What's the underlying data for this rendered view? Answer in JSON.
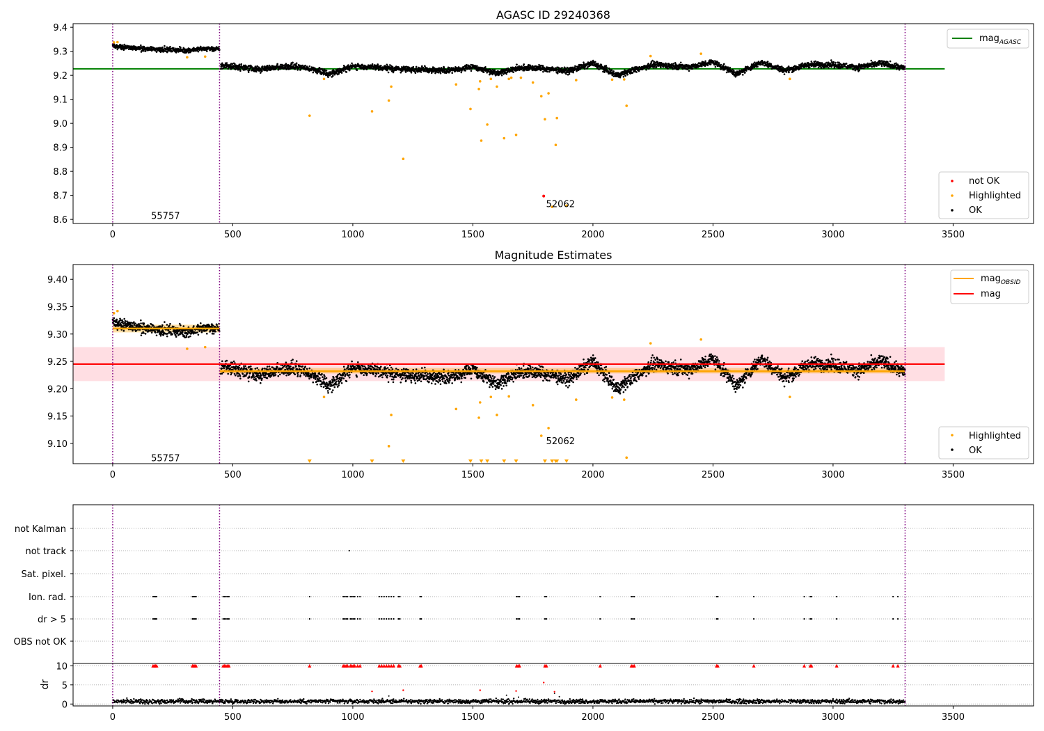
{
  "chart_data": [
    {
      "id": "panel1",
      "type": "scatter",
      "title": "AGASC ID 29240368",
      "xlim": [
        -165,
        3835
      ],
      "ylim": [
        8.583,
        9.415
      ],
      "xticks": [
        "0",
        "500",
        "1000",
        "1500",
        "2000",
        "2500",
        "3000",
        "3500"
      ],
      "xtick_values": [
        0,
        500,
        1000,
        1500,
        2000,
        2500,
        3000,
        3500
      ],
      "yticks": [
        "8.6",
        "8.7",
        "8.8",
        "8.9",
        "9.0",
        "9.1",
        "9.2",
        "9.3",
        "9.4"
      ],
      "ytick_values": [
        8.6,
        8.7,
        8.8,
        8.9,
        9.0,
        9.1,
        9.2,
        9.3,
        9.4
      ],
      "vlines": [
        0,
        445,
        3300
      ],
      "hline": {
        "y": 9.227,
        "x": [
          -165,
          3465
        ],
        "color": "#008000",
        "label": "mag",
        "label_sub": "AGASC"
      },
      "legend_top": {
        "entries": [
          {
            "label": "mag",
            "sub": "AGASC",
            "color": "#008000"
          }
        ]
      },
      "legend_bottom": {
        "entries": [
          {
            "label": "not OK",
            "color": "#ff0000"
          },
          {
            "label": "Highlighted",
            "color": "#ffa500"
          },
          {
            "label": "OK",
            "color": "#000000"
          }
        ]
      },
      "annotations": [
        {
          "text": "55757",
          "x": 160,
          "y": 8.617
        },
        {
          "text": "52062",
          "x": 1805,
          "y": 8.666
        }
      ],
      "series": [
        {
          "name": "OK",
          "color": "#000000",
          "segments": [
            {
              "x0": 0,
              "x1": 445,
              "levels": [
                [
                  0,
                  9.323
                ],
                [
                  100,
                  9.312
                ],
                [
                  200,
                  9.308
                ],
                [
                  300,
                  9.304
                ],
                [
                  400,
                  9.312
                ],
                [
                  445,
                  9.308
                ]
              ],
              "noise": 0.009
            },
            {
              "x0": 450,
              "x1": 3300,
              "levels": [
                [
                  450,
                  9.243
                ],
                [
                  600,
                  9.225
                ],
                [
                  750,
                  9.238
                ],
                [
                  850,
                  9.222
                ],
                [
                  900,
                  9.205
                ],
                [
                  1000,
                  9.238
                ],
                [
                  1200,
                  9.226
                ],
                [
                  1400,
                  9.22
                ],
                [
                  1500,
                  9.235
                ],
                [
                  1600,
                  9.21
                ],
                [
                  1700,
                  9.232
                ],
                [
                  1800,
                  9.228
                ],
                [
                  1900,
                  9.218
                ],
                [
                  2000,
                  9.25
                ],
                [
                  2100,
                  9.2
                ],
                [
                  2250,
                  9.245
                ],
                [
                  2400,
                  9.235
                ],
                [
                  2500,
                  9.255
                ],
                [
                  2600,
                  9.205
                ],
                [
                  2700,
                  9.255
                ],
                [
                  2800,
                  9.22
                ],
                [
                  2900,
                  9.245
                ],
                [
                  3000,
                  9.245
                ],
                [
                  3100,
                  9.233
                ],
                [
                  3200,
                  9.25
                ],
                [
                  3300,
                  9.23
                ]
              ],
              "noise": 0.011
            }
          ]
        },
        {
          "name": "Highlighted",
          "color": "#ffa500",
          "points": [
            [
              5,
              9.337
            ],
            [
              20,
              9.338
            ],
            [
              310,
              9.275
            ],
            [
              385,
              9.278
            ],
            [
              820,
              9.032
            ],
            [
              880,
              9.185
            ],
            [
              1080,
              9.05
            ],
            [
              1150,
              9.095
            ],
            [
              1160,
              9.153
            ],
            [
              1210,
              8.852
            ],
            [
              1430,
              9.162
            ],
            [
              1490,
              9.06
            ],
            [
              1525,
              9.143
            ],
            [
              1530,
              9.175
            ],
            [
              1535,
              8.928
            ],
            [
              1560,
              8.995
            ],
            [
              1575,
              9.185
            ],
            [
              1600,
              9.153
            ],
            [
              1630,
              8.938
            ],
            [
              1650,
              9.185
            ],
            [
              1680,
              8.952
            ],
            [
              1750,
              9.17
            ],
            [
              1785,
              9.113
            ],
            [
              1800,
              9.017
            ],
            [
              1830,
              8.652
            ],
            [
              1845,
              8.91
            ],
            [
              1850,
              9.022
            ],
            [
              1890,
              8.657
            ],
            [
              1930,
              9.18
            ],
            [
              2140,
              9.073
            ],
            [
              2240,
              9.28
            ],
            [
              2450,
              9.29
            ],
            [
              2820,
              9.185
            ],
            [
              2130,
              9.183
            ],
            [
              2080,
              9.182
            ],
            [
              1815,
              9.125
            ],
            [
              1700,
              9.19
            ],
            [
              1660,
              9.19
            ]
          ]
        },
        {
          "name": "not OK",
          "color": "#ff0000",
          "points": [
            [
              1795,
              8.697
            ]
          ]
        }
      ]
    },
    {
      "id": "panel2",
      "type": "scatter",
      "title": "Magnitude Estimates",
      "xlim": [
        -165,
        3835
      ],
      "ylim": [
        9.063,
        9.427
      ],
      "xticks": [
        "0",
        "500",
        "1000",
        "1500",
        "2000",
        "2500",
        "3000",
        "3500"
      ],
      "xtick_values": [
        0,
        500,
        1000,
        1500,
        2000,
        2500,
        3000,
        3500
      ],
      "yticks": [
        "9.10",
        "9.15",
        "9.20",
        "9.25",
        "9.30",
        "9.35",
        "9.40"
      ],
      "ytick_values": [
        9.1,
        9.15,
        9.2,
        9.25,
        9.3,
        9.35,
        9.4
      ],
      "vlines": [
        0,
        445,
        3300
      ],
      "band": {
        "y0": 9.214,
        "y1": 9.276,
        "x": [
          -165,
          3465
        ],
        "color": "#ffb6c1"
      },
      "mag_line": {
        "y": 9.245,
        "x": [
          -165,
          3465
        ],
        "color": "#ff0000"
      },
      "obsid_lines": [
        {
          "x0": 0,
          "x1": 445,
          "y": 9.31,
          "band": [
            9.303,
            9.317
          ]
        },
        {
          "x0": 445,
          "x1": 3300,
          "y": 9.232,
          "band": [
            9.228,
            9.238
          ]
        }
      ],
      "legend_top": {
        "entries": [
          {
            "label": "mag",
            "sub": "OBSID",
            "color": "#ffa500"
          },
          {
            "label": "mag",
            "sub": "",
            "color": "#ff0000"
          }
        ]
      },
      "legend_bottom": {
        "entries": [
          {
            "label": "Highlighted",
            "color": "#ffa500"
          },
          {
            "label": "OK",
            "color": "#000000"
          }
        ]
      },
      "annotations": [
        {
          "text": "55757",
          "x": 160,
          "y": 9.074
        },
        {
          "text": "52062",
          "x": 1805,
          "y": 9.105
        }
      ],
      "offscale_markers_x": [
        820,
        1080,
        1210,
        1490,
        1535,
        1560,
        1630,
        1680,
        1800,
        1830,
        1845,
        1850,
        1890
      ],
      "series": [
        {
          "name": "OK",
          "color": "#000000",
          "segments": [
            {
              "x0": 0,
              "x1": 445,
              "levels": [
                [
                  0,
                  9.323
                ],
                [
                  100,
                  9.312
                ],
                [
                  200,
                  9.308
                ],
                [
                  300,
                  9.304
                ],
                [
                  400,
                  9.312
                ],
                [
                  445,
                  9.308
                ]
              ],
              "noise": 0.009
            },
            {
              "x0": 450,
              "x1": 3300,
              "levels": [
                [
                  450,
                  9.243
                ],
                [
                  600,
                  9.225
                ],
                [
                  750,
                  9.238
                ],
                [
                  850,
                  9.222
                ],
                [
                  900,
                  9.205
                ],
                [
                  1000,
                  9.238
                ],
                [
                  1200,
                  9.226
                ],
                [
                  1400,
                  9.22
                ],
                [
                  1500,
                  9.235
                ],
                [
                  1600,
                  9.21
                ],
                [
                  1700,
                  9.232
                ],
                [
                  1800,
                  9.228
                ],
                [
                  1900,
                  9.218
                ],
                [
                  2000,
                  9.25
                ],
                [
                  2100,
                  9.2
                ],
                [
                  2250,
                  9.245
                ],
                [
                  2400,
                  9.235
                ],
                [
                  2500,
                  9.255
                ],
                [
                  2600,
                  9.205
                ],
                [
                  2700,
                  9.255
                ],
                [
                  2800,
                  9.22
                ],
                [
                  2900,
                  9.245
                ],
                [
                  3000,
                  9.245
                ],
                [
                  3100,
                  9.233
                ],
                [
                  3200,
                  9.25
                ],
                [
                  3300,
                  9.23
                ]
              ],
              "noise": 0.011
            }
          ]
        },
        {
          "name": "Highlighted",
          "color": "#ffa500",
          "points": [
            [
              5,
              9.338
            ],
            [
              20,
              9.342
            ],
            [
              310,
              9.273
            ],
            [
              385,
              9.276
            ],
            [
              880,
              9.185
            ],
            [
              1150,
              9.095
            ],
            [
              1160,
              9.152
            ],
            [
              1430,
              9.163
            ],
            [
              1525,
              9.147
            ],
            [
              1530,
              9.175
            ],
            [
              1575,
              9.185
            ],
            [
              1600,
              9.152
            ],
            [
              1650,
              9.186
            ],
            [
              1750,
              9.17
            ],
            [
              1785,
              9.114
            ],
            [
              1815,
              9.128
            ],
            [
              1930,
              9.18
            ],
            [
              2080,
              9.184
            ],
            [
              2130,
              9.18
            ],
            [
              2140,
              9.074
            ],
            [
              2240,
              9.283
            ],
            [
              2450,
              9.29
            ],
            [
              2820,
              9.185
            ]
          ]
        }
      ]
    },
    {
      "id": "panel3",
      "type": "scatter",
      "xlim": [
        -165,
        3835
      ],
      "categories": [
        "not Kalman",
        "not track",
        "Sat. pixel.",
        "Ion. rad.",
        "dr > 5",
        "OBS not OK"
      ],
      "vlines": [
        0,
        445,
        3300
      ],
      "events": {
        "not track": [
          985
        ],
        "Ion. rad.": [
          168,
          173,
          178,
          183,
          332,
          337,
          342,
          347,
          460,
          466,
          472,
          478,
          484,
          820,
          960,
          966,
          972,
          978,
          990,
          996,
          1002,
          1008,
          1020,
          1030,
          1110,
          1120,
          1130,
          1140,
          1150,
          1160,
          1170,
          1190,
          1196,
          1280,
          1285,
          1682,
          1688,
          1694,
          1800,
          1806,
          2030,
          2160,
          2166,
          2172,
          2515,
          2520,
          2670,
          2880,
          2905,
          2910,
          3015,
          3250,
          3270
        ],
        "dr > 5": [
          168,
          173,
          178,
          183,
          332,
          337,
          342,
          347,
          460,
          466,
          472,
          478,
          484,
          820,
          960,
          966,
          972,
          978,
          990,
          996,
          1002,
          1008,
          1020,
          1030,
          1110,
          1120,
          1130,
          1140,
          1150,
          1160,
          1170,
          1190,
          1196,
          1280,
          1285,
          1682,
          1688,
          1694,
          1800,
          1806,
          2030,
          2160,
          2166,
          2172,
          2515,
          2520,
          2670,
          2880,
          2905,
          2910,
          3015,
          3250,
          3270
        ]
      }
    },
    {
      "id": "panel4",
      "type": "scatter",
      "xlim": [
        -165,
        3835
      ],
      "ylim": [
        -0.5,
        10.6
      ],
      "ylabel": "dr",
      "xticks": [
        "0",
        "500",
        "1000",
        "1500",
        "2000",
        "2500",
        "3000",
        "3500"
      ],
      "xtick_values": [
        0,
        500,
        1000,
        1500,
        2000,
        2500,
        3000,
        3500
      ],
      "yticks": [
        "0",
        "5",
        "10"
      ],
      "ytick_values": [
        0,
        5,
        10
      ],
      "vlines": [
        0,
        445,
        3300
      ],
      "baseline": {
        "x0": 0,
        "x1": 3300,
        "mean": 0.7,
        "noise": 0.45
      },
      "capped_markers_x": [
        168,
        173,
        178,
        183,
        332,
        337,
        342,
        347,
        460,
        466,
        472,
        478,
        484,
        820,
        960,
        966,
        972,
        978,
        990,
        996,
        1002,
        1008,
        1020,
        1030,
        1110,
        1120,
        1130,
        1140,
        1150,
        1160,
        1170,
        1190,
        1196,
        1280,
        1285,
        1682,
        1688,
        1694,
        1800,
        1806,
        2030,
        2160,
        2166,
        2172,
        2515,
        2520,
        2670,
        2880,
        2905,
        2910,
        3015,
        3250,
        3270
      ],
      "red_points": [
        [
          1080,
          3.3
        ],
        [
          1210,
          3.6
        ],
        [
          1530,
          3.6
        ],
        [
          1680,
          3.4
        ],
        [
          1795,
          5.6
        ],
        [
          1840,
          3.2
        ]
      ],
      "black_points": [
        [
          1150,
          2.1
        ],
        [
          1640,
          2.3
        ],
        [
          1690,
          1.8
        ],
        [
          1840,
          2.8
        ],
        [
          1860,
          1.9
        ]
      ]
    }
  ]
}
